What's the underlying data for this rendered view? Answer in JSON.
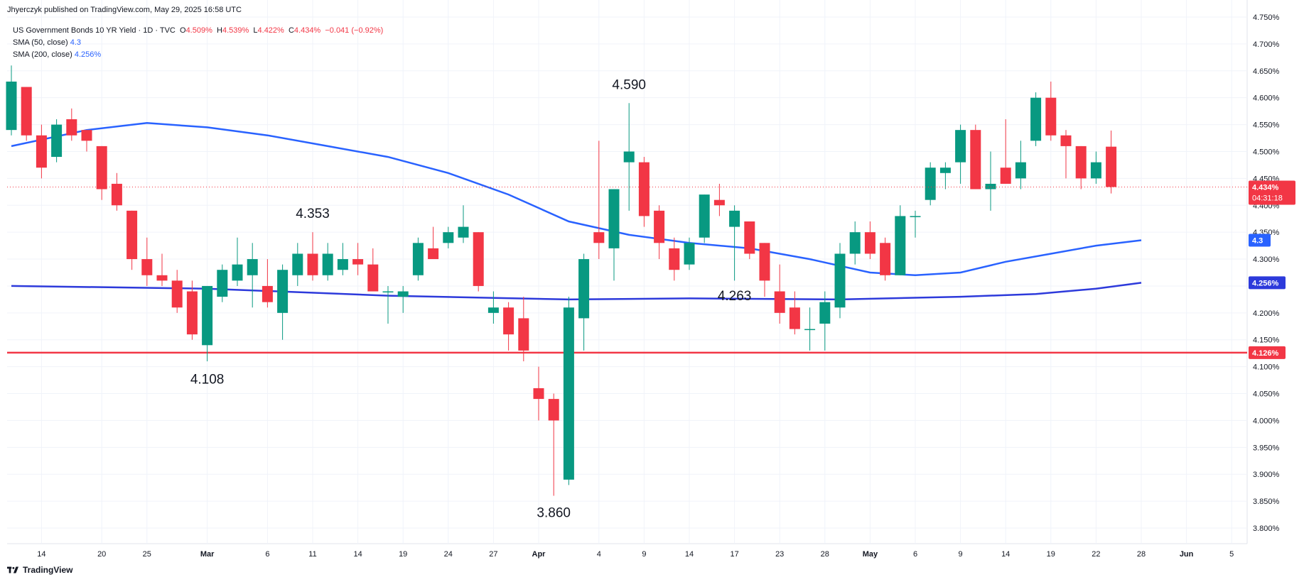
{
  "header": {
    "published": "Jhyerczyk published on TradingView.com, May 29, 2025 16:58 UTC",
    "symbol": "US Government Bonds 10 YR Yield · 1D · TVC",
    "ohlc": {
      "o_label": "O",
      "o": "4.509%",
      "h_label": "H",
      "h": "4.539%",
      "l_label": "L",
      "l": "4.422%",
      "c_label": "C",
      "c": "4.434%",
      "chg": "−0.041 (−0.92%)"
    },
    "sma50_label": "SMA (50, close)",
    "sma50_value": "4.3",
    "sma200_label": "SMA (200, close)",
    "sma200_value": "4.256%"
  },
  "footer": {
    "logo_text": "TradingView"
  },
  "colors": {
    "up": "#089981",
    "down": "#f23645",
    "sma50": "#2962ff",
    "sma200": "#2d3adb",
    "support": "#f23645",
    "grid": "#f0f3fa"
  },
  "badges": {
    "last": "4.434%",
    "countdown": "04:31:18",
    "sma50": "4.3",
    "sma200": "4.256%",
    "support": "4.126%"
  },
  "chart_data": {
    "type": "candlestick",
    "y_unit": "%",
    "ylim": [
      3.76,
      4.8
    ],
    "yticks": [
      "3.800%",
      "3.850%",
      "3.900%",
      "3.950%",
      "4.000%",
      "4.050%",
      "4.100%",
      "4.150%",
      "4.200%",
      "4.250%",
      "4.300%",
      "4.350%",
      "4.400%",
      "4.450%",
      "4.500%",
      "4.550%",
      "4.600%",
      "4.650%",
      "4.700%",
      "4.750%"
    ],
    "xticks": [
      {
        "label": "14",
        "i": 2
      },
      {
        "label": "20",
        "i": 6
      },
      {
        "label": "25",
        "i": 9
      },
      {
        "label": "Mar",
        "i": 13
      },
      {
        "label": "6",
        "i": 17
      },
      {
        "label": "11",
        "i": 20
      },
      {
        "label": "14",
        "i": 23
      },
      {
        "label": "19",
        "i": 26
      },
      {
        "label": "24",
        "i": 29
      },
      {
        "label": "27",
        "i": 32
      },
      {
        "label": "Apr",
        "i": 35
      },
      {
        "label": "4",
        "i": 39
      },
      {
        "label": "9",
        "i": 42
      },
      {
        "label": "14",
        "i": 45
      },
      {
        "label": "17",
        "i": 48
      },
      {
        "label": "23",
        "i": 51
      },
      {
        "label": "28",
        "i": 54
      },
      {
        "label": "May",
        "i": 57
      },
      {
        "label": "6",
        "i": 60
      },
      {
        "label": "9",
        "i": 63
      },
      {
        "label": "14",
        "i": 66
      },
      {
        "label": "19",
        "i": 69
      },
      {
        "label": "22",
        "i": 72
      },
      {
        "label": "28",
        "i": 75
      },
      {
        "label": "Jun",
        "i": 78
      },
      {
        "label": "5",
        "i": 81
      }
    ],
    "candles": [
      {
        "o": 4.54,
        "h": 4.66,
        "l": 4.53,
        "c": 4.63
      },
      {
        "o": 4.62,
        "h": 4.62,
        "l": 4.52,
        "c": 4.53
      },
      {
        "o": 4.53,
        "h": 4.55,
        "l": 4.45,
        "c": 4.47
      },
      {
        "o": 4.49,
        "h": 4.56,
        "l": 4.48,
        "c": 4.55
      },
      {
        "o": 4.56,
        "h": 4.58,
        "l": 4.52,
        "c": 4.53
      },
      {
        "o": 4.54,
        "h": 4.54,
        "l": 4.5,
        "c": 4.52
      },
      {
        "o": 4.51,
        "h": 4.51,
        "l": 4.41,
        "c": 4.43
      },
      {
        "o": 4.44,
        "h": 4.46,
        "l": 4.39,
        "c": 4.4
      },
      {
        "o": 4.39,
        "h": 4.39,
        "l": 4.28,
        "c": 4.3
      },
      {
        "o": 4.3,
        "h": 4.34,
        "l": 4.25,
        "c": 4.27
      },
      {
        "o": 4.27,
        "h": 4.31,
        "l": 4.25,
        "c": 4.26
      },
      {
        "o": 4.26,
        "h": 4.28,
        "l": 4.2,
        "c": 4.21
      },
      {
        "o": 4.24,
        "h": 4.26,
        "l": 4.15,
        "c": 4.16
      },
      {
        "o": 4.14,
        "h": 4.25,
        "l": 4.11,
        "c": 4.25
      },
      {
        "o": 4.23,
        "h": 4.29,
        "l": 4.22,
        "c": 4.28
      },
      {
        "o": 4.26,
        "h": 4.34,
        "l": 4.25,
        "c": 4.29
      },
      {
        "o": 4.27,
        "h": 4.33,
        "l": 4.21,
        "c": 4.3
      },
      {
        "o": 4.25,
        "h": 4.3,
        "l": 4.21,
        "c": 4.22
      },
      {
        "o": 4.2,
        "h": 4.29,
        "l": 4.15,
        "c": 4.28
      },
      {
        "o": 4.27,
        "h": 4.33,
        "l": 4.25,
        "c": 4.31
      },
      {
        "o": 4.31,
        "h": 4.35,
        "l": 4.26,
        "c": 4.27
      },
      {
        "o": 4.27,
        "h": 4.33,
        "l": 4.26,
        "c": 4.31
      },
      {
        "o": 4.28,
        "h": 4.33,
        "l": 4.27,
        "c": 4.3
      },
      {
        "o": 4.3,
        "h": 4.33,
        "l": 4.27,
        "c": 4.29
      },
      {
        "o": 4.29,
        "h": 4.32,
        "l": 4.24,
        "c": 4.24
      },
      {
        "o": 4.24,
        "h": 4.25,
        "l": 4.18,
        "c": 4.24
      },
      {
        "o": 4.23,
        "h": 4.25,
        "l": 4.2,
        "c": 4.24
      },
      {
        "o": 4.27,
        "h": 4.34,
        "l": 4.26,
        "c": 4.33
      },
      {
        "o": 4.32,
        "h": 4.36,
        "l": 4.31,
        "c": 4.3
      },
      {
        "o": 4.33,
        "h": 4.36,
        "l": 4.32,
        "c": 4.35
      },
      {
        "o": 4.34,
        "h": 4.4,
        "l": 4.33,
        "c": 4.36
      },
      {
        "o": 4.35,
        "h": 4.35,
        "l": 4.24,
        "c": 4.25
      },
      {
        "o": 4.2,
        "h": 4.24,
        "l": 4.18,
        "c": 4.21
      },
      {
        "o": 4.21,
        "h": 4.22,
        "l": 4.13,
        "c": 4.16
      },
      {
        "o": 4.19,
        "h": 4.23,
        "l": 4.11,
        "c": 4.13
      },
      {
        "o": 4.06,
        "h": 4.1,
        "l": 4.0,
        "c": 4.04
      },
      {
        "o": 4.04,
        "h": 4.05,
        "l": 3.86,
        "c": 4.0
      },
      {
        "o": 3.89,
        "h": 4.23,
        "l": 3.88,
        "c": 4.21
      },
      {
        "o": 4.19,
        "h": 4.31,
        "l": 4.13,
        "c": 4.3
      },
      {
        "o": 4.35,
        "h": 4.52,
        "l": 4.3,
        "c": 4.33
      },
      {
        "o": 4.32,
        "h": 4.43,
        "l": 4.26,
        "c": 4.43
      },
      {
        "o": 4.48,
        "h": 4.59,
        "l": 4.39,
        "c": 4.5
      },
      {
        "o": 4.48,
        "h": 4.49,
        "l": 4.36,
        "c": 4.38
      },
      {
        "o": 4.39,
        "h": 4.4,
        "l": 4.3,
        "c": 4.33
      },
      {
        "o": 4.32,
        "h": 4.34,
        "l": 4.26,
        "c": 4.28
      },
      {
        "o": 4.29,
        "h": 4.34,
        "l": 4.28,
        "c": 4.33
      },
      {
        "o": 4.34,
        "h": 4.42,
        "l": 4.33,
        "c": 4.42
      },
      {
        "o": 4.41,
        "h": 4.44,
        "l": 4.38,
        "c": 4.4
      },
      {
        "o": 4.36,
        "h": 4.4,
        "l": 4.26,
        "c": 4.39
      },
      {
        "o": 4.37,
        "h": 4.37,
        "l": 4.3,
        "c": 4.31
      },
      {
        "o": 4.33,
        "h": 4.33,
        "l": 4.23,
        "c": 4.26
      },
      {
        "o": 4.24,
        "h": 4.29,
        "l": 4.18,
        "c": 4.2
      },
      {
        "o": 4.21,
        "h": 4.24,
        "l": 4.16,
        "c": 4.17
      },
      {
        "o": 4.17,
        "h": 4.21,
        "l": 4.13,
        "c": 4.17
      },
      {
        "o": 4.18,
        "h": 4.24,
        "l": 4.13,
        "c": 4.22
      },
      {
        "o": 4.21,
        "h": 4.33,
        "l": 4.19,
        "c": 4.31
      },
      {
        "o": 4.31,
        "h": 4.37,
        "l": 4.29,
        "c": 4.35
      },
      {
        "o": 4.35,
        "h": 4.37,
        "l": 4.3,
        "c": 4.31
      },
      {
        "o": 4.33,
        "h": 4.34,
        "l": 4.26,
        "c": 4.27
      },
      {
        "o": 4.27,
        "h": 4.4,
        "l": 4.27,
        "c": 4.38
      },
      {
        "o": 4.38,
        "h": 4.39,
        "l": 4.34,
        "c": 4.38
      },
      {
        "o": 4.41,
        "h": 4.48,
        "l": 4.4,
        "c": 4.47
      },
      {
        "o": 4.46,
        "h": 4.48,
        "l": 4.43,
        "c": 4.47
      },
      {
        "o": 4.48,
        "h": 4.55,
        "l": 4.44,
        "c": 4.54
      },
      {
        "o": 4.54,
        "h": 4.55,
        "l": 4.43,
        "c": 4.43
      },
      {
        "o": 4.43,
        "h": 4.5,
        "l": 4.39,
        "c": 4.44
      },
      {
        "o": 4.47,
        "h": 4.56,
        "l": 4.44,
        "c": 4.44
      },
      {
        "o": 4.45,
        "h": 4.52,
        "l": 4.43,
        "c": 4.48
      },
      {
        "o": 4.52,
        "h": 4.61,
        "l": 4.51,
        "c": 4.6
      },
      {
        "o": 4.6,
        "h": 4.63,
        "l": 4.52,
        "c": 4.53
      },
      {
        "o": 4.53,
        "h": 4.54,
        "l": 4.45,
        "c": 4.51
      },
      {
        "o": 4.51,
        "h": 4.51,
        "l": 4.43,
        "c": 4.45
      },
      {
        "o": 4.45,
        "h": 4.5,
        "l": 4.44,
        "c": 4.48
      },
      {
        "o": 4.509,
        "h": 4.539,
        "l": 4.422,
        "c": 4.434
      }
    ],
    "sma50": [
      [
        0,
        4.51
      ],
      [
        5,
        4.54
      ],
      [
        9,
        4.553
      ],
      [
        13,
        4.545
      ],
      [
        17,
        4.53
      ],
      [
        21,
        4.51
      ],
      [
        25,
        4.49
      ],
      [
        29,
        4.46
      ],
      [
        33,
        4.42
      ],
      [
        37,
        4.37
      ],
      [
        41,
        4.345
      ],
      [
        45,
        4.33
      ],
      [
        49,
        4.32
      ],
      [
        53,
        4.3
      ],
      [
        57,
        4.275
      ],
      [
        60,
        4.27
      ],
      [
        63,
        4.275
      ],
      [
        66,
        4.295
      ],
      [
        69,
        4.31
      ],
      [
        72,
        4.325
      ],
      [
        75,
        4.335
      ]
    ],
    "sma200": [
      [
        0,
        4.25
      ],
      [
        13,
        4.245
      ],
      [
        25,
        4.232
      ],
      [
        37,
        4.225
      ],
      [
        45,
        4.227
      ],
      [
        55,
        4.225
      ],
      [
        63,
        4.23
      ],
      [
        68,
        4.235
      ],
      [
        72,
        4.245
      ],
      [
        75,
        4.256
      ]
    ],
    "support_level": 4.126,
    "annotations": [
      {
        "text": "4.590",
        "i": 41,
        "y": 4.59,
        "pos": "above"
      },
      {
        "text": "4.353",
        "i": 20,
        "y": 4.35,
        "pos": "above"
      },
      {
        "text": "4.108",
        "i": 13,
        "y": 4.108,
        "pos": "below"
      },
      {
        "text": "3.860",
        "i": 36,
        "y": 3.86,
        "pos": "below"
      },
      {
        "text": "4.263",
        "i": 48,
        "y": 4.263,
        "pos": "below"
      }
    ]
  }
}
